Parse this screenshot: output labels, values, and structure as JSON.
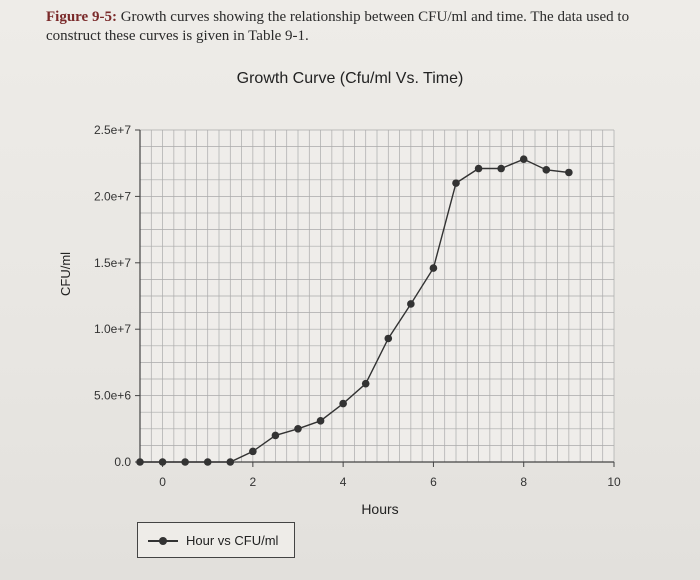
{
  "caption": {
    "figure_number": "Figure 9-5:",
    "text": "Growth curves showing the relationship between CFU/ml and time. The data used to construct these curves is given in Table 9-1."
  },
  "colors": {
    "figure_number": "#7a2a2a",
    "series": "#333333",
    "grid": "#aaaaaa"
  },
  "chart_data": {
    "type": "line",
    "title": "Growth Curve (Cfu/ml Vs. Time)",
    "xlabel": "Hours",
    "ylabel": "CFU/ml",
    "xlim": [
      -0.5,
      10
    ],
    "ylim": [
      0,
      25000000
    ],
    "x_ticks": [
      0,
      2,
      4,
      6,
      8,
      10
    ],
    "x_tick_labels": [
      "0",
      "2",
      "4",
      "6",
      "8",
      "10"
    ],
    "y_ticks": [
      0,
      5000000,
      10000000,
      15000000,
      20000000,
      25000000
    ],
    "y_tick_labels": [
      "0.0",
      "5.0e+6",
      "1.0e+7",
      "1.5e+7",
      "2.0e+7",
      "2.5e+7"
    ],
    "grid": true,
    "legend_position": "bottom-left",
    "series": [
      {
        "name": "Hour vs CFU/ml",
        "x": [
          -0.5,
          0,
          0.5,
          1,
          1.5,
          2,
          2.5,
          3,
          3.5,
          4,
          4.5,
          5,
          5.5,
          6,
          6.5,
          7,
          7.5,
          8,
          8.5,
          9
        ],
        "y": [
          0,
          0,
          0,
          0,
          0,
          800000,
          2000000,
          2500000,
          3100000,
          4400000,
          5900000,
          9300000,
          11900000,
          14600000,
          21000000,
          22100000,
          22100000,
          22800000,
          22000000,
          21800000
        ]
      }
    ]
  }
}
